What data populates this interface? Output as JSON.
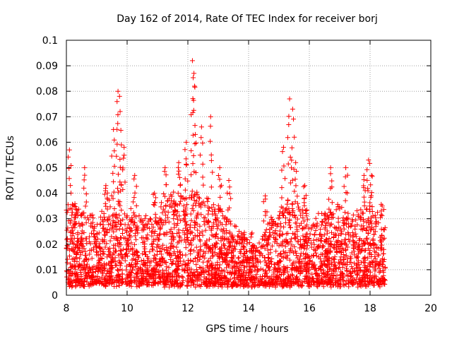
{
  "chart_data": {
    "type": "scatter",
    "title": "Day 162 of 2014, Rate Of TEC Index for receiver borj",
    "xlabel": "GPS time / hours",
    "ylabel": "ROTI / TECUs",
    "xlim": [
      8,
      20
    ],
    "ylim": [
      0,
      0.1
    ],
    "x_ticks": [
      8,
      10,
      12,
      14,
      16,
      18,
      20
    ],
    "x_tick_labels": [
      "8",
      "10",
      "12",
      "14",
      "16",
      "18",
      "20"
    ],
    "y_ticks": [
      0,
      0.01,
      0.02,
      0.03,
      0.04,
      0.05,
      0.06,
      0.07,
      0.08,
      0.09,
      0.1
    ],
    "y_tick_labels": [
      "0",
      "0.01",
      "0.02",
      "0.03",
      "0.04",
      "0.05",
      "0.06",
      "0.07",
      "0.08",
      "0.09",
      "0.1"
    ],
    "grid": true,
    "marker": "+",
    "color": "#ff0000",
    "data_range_hours": [
      8.0,
      18.5
    ],
    "peaks": [
      {
        "x": 8.1,
        "y": 0.057
      },
      {
        "x": 8.6,
        "y": 0.05
      },
      {
        "x": 9.3,
        "y": 0.043
      },
      {
        "x": 9.55,
        "y": 0.065
      },
      {
        "x": 9.7,
        "y": 0.08
      },
      {
        "x": 9.75,
        "y": 0.078
      },
      {
        "x": 9.9,
        "y": 0.058
      },
      {
        "x": 10.25,
        "y": 0.047
      },
      {
        "x": 10.9,
        "y": 0.04
      },
      {
        "x": 11.25,
        "y": 0.05
      },
      {
        "x": 11.7,
        "y": 0.052
      },
      {
        "x": 11.95,
        "y": 0.06
      },
      {
        "x": 12.15,
        "y": 0.092
      },
      {
        "x": 12.2,
        "y": 0.087
      },
      {
        "x": 12.22,
        "y": 0.082
      },
      {
        "x": 12.45,
        "y": 0.066
      },
      {
        "x": 12.75,
        "y": 0.07
      },
      {
        "x": 13.05,
        "y": 0.05
      },
      {
        "x": 13.35,
        "y": 0.045
      },
      {
        "x": 14.55,
        "y": 0.039
      },
      {
        "x": 15.15,
        "y": 0.058
      },
      {
        "x": 15.35,
        "y": 0.077
      },
      {
        "x": 15.45,
        "y": 0.073
      },
      {
        "x": 15.55,
        "y": 0.052
      },
      {
        "x": 15.85,
        "y": 0.043
      },
      {
        "x": 16.7,
        "y": 0.05
      },
      {
        "x": 17.2,
        "y": 0.05
      },
      {
        "x": 17.8,
        "y": 0.047
      },
      {
        "x": 17.95,
        "y": 0.053
      },
      {
        "x": 18.05,
        "y": 0.047
      },
      {
        "x": 18.4,
        "y": 0.035
      }
    ],
    "envelope": [
      {
        "x": 8.0,
        "y": 0.038
      },
      {
        "x": 8.5,
        "y": 0.034
      },
      {
        "x": 9.0,
        "y": 0.03
      },
      {
        "x": 9.5,
        "y": 0.04
      },
      {
        "x": 9.8,
        "y": 0.045
      },
      {
        "x": 10.0,
        "y": 0.035
      },
      {
        "x": 10.5,
        "y": 0.03
      },
      {
        "x": 11.0,
        "y": 0.034
      },
      {
        "x": 11.5,
        "y": 0.04
      },
      {
        "x": 12.0,
        "y": 0.042
      },
      {
        "x": 12.5,
        "y": 0.04
      },
      {
        "x": 13.0,
        "y": 0.035
      },
      {
        "x": 13.5,
        "y": 0.028
      },
      {
        "x": 14.0,
        "y": 0.024
      },
      {
        "x": 14.5,
        "y": 0.026
      },
      {
        "x": 15.0,
        "y": 0.034
      },
      {
        "x": 15.4,
        "y": 0.04
      },
      {
        "x": 16.0,
        "y": 0.032
      },
      {
        "x": 16.5,
        "y": 0.033
      },
      {
        "x": 17.0,
        "y": 0.035
      },
      {
        "x": 17.5,
        "y": 0.034
      },
      {
        "x": 18.0,
        "y": 0.035
      },
      {
        "x": 18.5,
        "y": 0.028
      }
    ]
  }
}
